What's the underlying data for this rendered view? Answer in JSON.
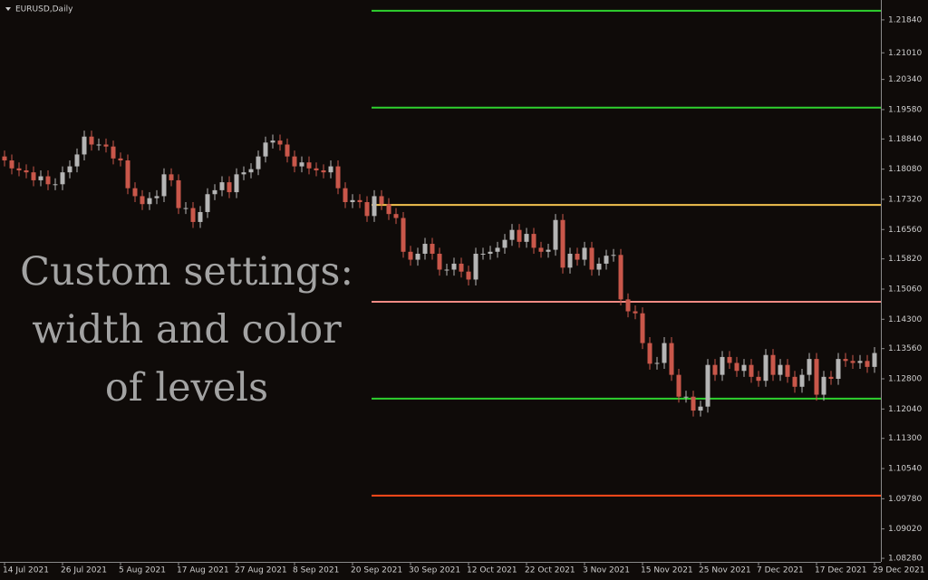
{
  "chart_data": {
    "type": "candlestick",
    "title": "EURUSD,Daily",
    "annotation": [
      "Custom settings:",
      "width and color",
      "of levels"
    ],
    "categories": [
      "14 Jul 2021",
      null,
      null,
      null,
      null,
      null,
      null,
      null,
      "26 Jul 2021",
      null,
      null,
      null,
      null,
      null,
      null,
      null,
      "5 Aug 2021",
      null,
      null,
      null,
      null,
      null,
      null,
      null,
      "17 Aug 2021",
      null,
      null,
      null,
      null,
      null,
      null,
      null,
      "27 Aug 2021",
      null,
      null,
      null,
      null,
      null,
      null,
      null,
      "8 Sep 2021",
      null,
      null,
      null,
      null,
      null,
      null,
      null,
      "20 Sep 2021",
      null,
      null,
      null,
      null,
      null,
      null,
      null,
      "30 Sep 2021",
      null,
      null,
      null,
      null,
      null,
      null,
      null,
      "12 Oct 2021",
      null,
      null,
      null,
      null,
      null,
      null,
      null,
      "22 Oct 2021",
      null,
      null,
      null,
      null,
      null,
      null,
      null,
      "3 Nov 2021",
      null,
      null,
      null,
      null,
      null,
      null,
      null,
      "15 Nov 2021",
      null,
      null,
      null,
      null,
      null,
      null,
      null,
      "25 Nov 2021",
      null,
      null,
      null,
      null,
      null,
      null,
      null,
      "7 Dec 2021",
      null,
      null,
      null,
      null,
      null,
      null,
      null,
      "17 Dec 2021",
      null,
      null,
      null,
      null,
      null,
      null,
      null,
      "29 Dec 2021"
    ],
    "open": [
      1.184,
      1.183,
      1.181,
      1.1805,
      1.18,
      1.178,
      1.179,
      1.177,
      1.177,
      1.18,
      1.1815,
      1.1845,
      1.189,
      1.187,
      1.187,
      1.1865,
      1.1835,
      1.183,
      1.176,
      1.174,
      1.172,
      1.1735,
      1.174,
      1.1795,
      1.178,
      1.171,
      1.171,
      1.1675,
      1.17,
      1.1745,
      1.1755,
      1.1775,
      1.175,
      1.1795,
      1.18,
      1.1808,
      1.184,
      1.1875,
      1.188,
      1.187,
      1.184,
      1.1815,
      1.1825,
      1.181,
      1.1805,
      1.18,
      1.1815,
      1.176,
      1.1725,
      1.173,
      1.1725,
      1.169,
      1.174,
      1.172,
      1.1695,
      1.1685,
      1.16,
      1.158,
      1.1595,
      1.162,
      1.1595,
      1.1555,
      1.1555,
      1.157,
      1.155,
      1.153,
      1.1595,
      1.1595,
      1.16,
      1.161,
      1.163,
      1.1655,
      1.1625,
      1.1645,
      1.161,
      1.16,
      1.1605,
      1.168,
      1.156,
      1.1595,
      1.158,
      1.161,
      1.1555,
      1.157,
      1.159,
      1.1592,
      1.148,
      1.145,
      1.1445,
      1.137,
      1.1318,
      1.132,
      1.137,
      1.129,
      1.1235,
      1.1235,
      1.12,
      1.121,
      1.1315,
      1.129,
      1.1335,
      1.132,
      1.13,
      1.1315,
      1.1285,
      1.1275,
      1.134,
      1.129,
      1.1315,
      1.1285,
      1.126,
      1.129,
      1.133,
      1.124,
      1.1285,
      1.128,
      1.133,
      1.1325,
      1.132,
      1.1325,
      1.131
    ],
    "high": [
      1.1855,
      1.1845,
      1.1825,
      1.182,
      1.1815,
      1.1805,
      1.1805,
      1.1785,
      1.1815,
      1.183,
      1.186,
      1.1905,
      1.1905,
      1.1885,
      1.1885,
      1.188,
      1.185,
      1.1845,
      1.1775,
      1.1755,
      1.175,
      1.1755,
      1.181,
      1.181,
      1.1795,
      1.1725,
      1.1725,
      1.1715,
      1.176,
      1.177,
      1.179,
      1.179,
      1.181,
      1.1815,
      1.1823,
      1.1855,
      1.189,
      1.1895,
      1.1895,
      1.1885,
      1.1855,
      1.184,
      1.184,
      1.1825,
      1.182,
      1.183,
      1.183,
      1.1775,
      1.1745,
      1.1745,
      1.174,
      1.1755,
      1.1755,
      1.1735,
      1.171,
      1.17,
      1.1615,
      1.161,
      1.1635,
      1.1635,
      1.161,
      1.157,
      1.1585,
      1.1585,
      1.1565,
      1.161,
      1.161,
      1.1615,
      1.1625,
      1.1645,
      1.167,
      1.167,
      1.166,
      1.166,
      1.1625,
      1.162,
      1.1695,
      1.1695,
      1.161,
      1.161,
      1.1625,
      1.1625,
      1.1585,
      1.1605,
      1.1607,
      1.1607,
      1.1495,
      1.1465,
      1.146,
      1.1385,
      1.1335,
      1.1385,
      1.1385,
      1.1305,
      1.125,
      1.125,
      1.1225,
      1.133,
      1.133,
      1.135,
      1.135,
      1.1335,
      1.133,
      1.133,
      1.13,
      1.1355,
      1.1355,
      1.133,
      1.133,
      1.13,
      1.1305,
      1.1345,
      1.1345,
      1.13,
      1.13,
      1.1345,
      1.1345,
      1.134,
      1.134,
      1.134,
      1.136
    ],
    "low": [
      1.1815,
      1.1795,
      1.179,
      1.1785,
      1.1765,
      1.1765,
      1.1755,
      1.1755,
      1.1755,
      1.1785,
      1.18,
      1.183,
      1.1855,
      1.1855,
      1.185,
      1.182,
      1.1815,
      1.1745,
      1.1725,
      1.1705,
      1.1705,
      1.172,
      1.1725,
      1.1765,
      1.1695,
      1.1695,
      1.166,
      1.166,
      1.1685,
      1.173,
      1.174,
      1.1735,
      1.1735,
      1.178,
      1.1785,
      1.1793,
      1.1825,
      1.186,
      1.1855,
      1.1825,
      1.18,
      1.18,
      1.1795,
      1.179,
      1.1785,
      1.1785,
      1.1745,
      1.171,
      1.171,
      1.171,
      1.1675,
      1.1675,
      1.1705,
      1.168,
      1.167,
      1.1585,
      1.1565,
      1.1565,
      1.158,
      1.158,
      1.154,
      1.154,
      1.154,
      1.1535,
      1.1515,
      1.1515,
      1.158,
      1.158,
      1.1585,
      1.1595,
      1.1615,
      1.161,
      1.161,
      1.1595,
      1.1585,
      1.1585,
      1.159,
      1.1545,
      1.1545,
      1.1565,
      1.1565,
      1.154,
      1.154,
      1.1555,
      1.1575,
      1.1465,
      1.1435,
      1.143,
      1.1355,
      1.1303,
      1.1303,
      1.1305,
      1.1275,
      1.122,
      1.122,
      1.1185,
      1.1185,
      1.1195,
      1.1275,
      1.1275,
      1.1305,
      1.1285,
      1.1285,
      1.127,
      1.126,
      1.126,
      1.1275,
      1.1275,
      1.127,
      1.1245,
      1.1245,
      1.1275,
      1.1225,
      1.1225,
      1.1265,
      1.1265,
      1.131,
      1.1305,
      1.1305,
      1.1295,
      1.1295
    ],
    "close": [
      1.183,
      1.181,
      1.1805,
      1.18,
      1.178,
      1.179,
      1.177,
      1.177,
      1.18,
      1.1815,
      1.1845,
      1.189,
      1.187,
      1.187,
      1.1865,
      1.1835,
      1.183,
      1.176,
      1.174,
      1.172,
      1.1735,
      1.174,
      1.1795,
      1.178,
      1.171,
      1.171,
      1.1675,
      1.17,
      1.1745,
      1.1755,
      1.1775,
      1.175,
      1.1795,
      1.18,
      1.1808,
      1.184,
      1.1875,
      1.188,
      1.187,
      1.184,
      1.1815,
      1.1825,
      1.181,
      1.1805,
      1.18,
      1.1815,
      1.176,
      1.1725,
      1.173,
      1.1725,
      1.169,
      1.174,
      1.172,
      1.1695,
      1.1685,
      1.16,
      1.158,
      1.1595,
      1.162,
      1.1595,
      1.1555,
      1.1555,
      1.157,
      1.155,
      1.153,
      1.1595,
      1.1595,
      1.16,
      1.161,
      1.163,
      1.1655,
      1.1625,
      1.1645,
      1.161,
      1.16,
      1.1605,
      1.168,
      1.156,
      1.1595,
      1.158,
      1.161,
      1.1555,
      1.157,
      1.159,
      1.1592,
      1.148,
      1.145,
      1.1445,
      1.137,
      1.1318,
      1.132,
      1.137,
      1.129,
      1.1235,
      1.1235,
      1.12,
      1.121,
      1.1315,
      1.129,
      1.1335,
      1.132,
      1.13,
      1.1315,
      1.1285,
      1.1275,
      1.134,
      1.129,
      1.1315,
      1.1285,
      1.126,
      1.129,
      1.133,
      1.124,
      1.1285,
      1.128,
      1.133,
      1.1325,
      1.132,
      1.1325,
      1.131,
      1.1345
    ],
    "up_color": "#b5b5b5",
    "down_color": "#c9574a",
    "levels": [
      {
        "value": 1.2207,
        "color": "#2fd22f"
      },
      {
        "value": 1.1963,
        "color": "#2fd22f"
      },
      {
        "value": 1.1718,
        "color": "#f2c14e"
      },
      {
        "value": 1.1474,
        "color": "#f08a84"
      },
      {
        "value": 1.123,
        "color": "#2fd22f"
      },
      {
        "value": 1.0986,
        "color": "#ff4a1a"
      }
    ],
    "ylim": [
      1.0819,
      1.2234
    ],
    "yticks": [
      {
        "value": 1.2184,
        "label": "1.21840"
      },
      {
        "value": 1.2101,
        "label": "1.21010"
      },
      {
        "value": 1.2034,
        "label": "1.20340"
      },
      {
        "value": 1.1958,
        "label": "1.19580"
      },
      {
        "value": 1.1884,
        "label": "1.18840"
      },
      {
        "value": 1.1808,
        "label": "1.18080"
      },
      {
        "value": 1.1732,
        "label": "1.17320"
      },
      {
        "value": 1.1656,
        "label": "1.16560"
      },
      {
        "value": 1.1582,
        "label": "1.15820"
      },
      {
        "value": 1.1506,
        "label": "1.15060"
      },
      {
        "value": 1.143,
        "label": "1.14300"
      },
      {
        "value": 1.1356,
        "label": "1.13560"
      },
      {
        "value": 1.128,
        "label": "1.12800"
      },
      {
        "value": 1.1204,
        "label": "1.12040"
      },
      {
        "value": 1.113,
        "label": "1.11300"
      },
      {
        "value": 1.1054,
        "label": "1.10540"
      },
      {
        "value": 1.0978,
        "label": "1.09780"
      },
      {
        "value": 1.0902,
        "label": "1.09020"
      },
      {
        "value": 1.0828,
        "label": "1.08280"
      }
    ],
    "grid": false
  }
}
